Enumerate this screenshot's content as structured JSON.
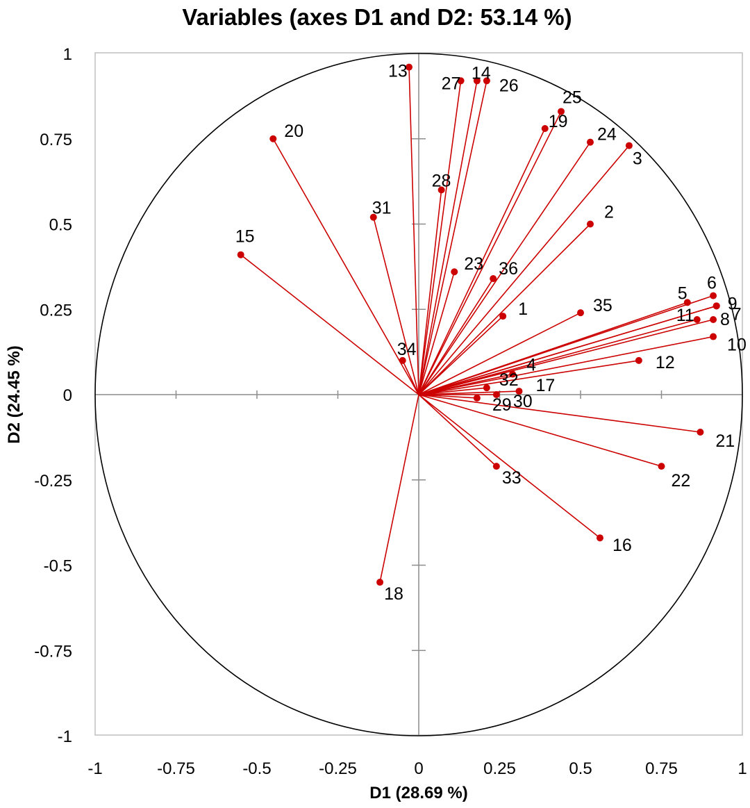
{
  "chart_data": {
    "type": "scatter",
    "subtype": "correlation-circle",
    "title": "Variables (axes D1 and D2: 53.14 %)",
    "xlabel": "D1 (28.69 %)",
    "ylabel": "D2 (24.45 %)",
    "xlim": [
      -1,
      1
    ],
    "ylim": [
      -1,
      1
    ],
    "x_ticks": [
      "-1",
      "-0.75",
      "-0.5",
      "-0.25",
      "0",
      "0.25",
      "0.5",
      "0.75",
      "1"
    ],
    "y_ticks": [
      "1",
      "0.75",
      "0.5",
      "0.25",
      "0",
      "-0.25",
      "-0.5",
      "-0.75",
      "-1"
    ],
    "vector_color": "#cc0000",
    "circle_color": "#000000",
    "points": [
      {
        "label": "1",
        "x": 0.26,
        "y": 0.23
      },
      {
        "label": "2",
        "x": 0.53,
        "y": 0.5
      },
      {
        "label": "3",
        "x": 0.65,
        "y": 0.73
      },
      {
        "label": "4",
        "x": 0.29,
        "y": 0.06
      },
      {
        "label": "5",
        "x": 0.83,
        "y": 0.27
      },
      {
        "label": "6",
        "x": 0.91,
        "y": 0.29
      },
      {
        "label": "7",
        "x": 0.92,
        "y": 0.26
      },
      {
        "label": "8",
        "x": 0.91,
        "y": 0.22
      },
      {
        "label": "9",
        "x": 0.92,
        "y": 0.26
      },
      {
        "label": "10",
        "x": 0.91,
        "y": 0.17
      },
      {
        "label": "11",
        "x": 0.86,
        "y": 0.22
      },
      {
        "label": "12",
        "x": 0.68,
        "y": 0.1
      },
      {
        "label": "13",
        "x": -0.03,
        "y": 0.96
      },
      {
        "label": "14",
        "x": 0.18,
        "y": 0.92
      },
      {
        "label": "15",
        "x": -0.55,
        "y": 0.41
      },
      {
        "label": "16",
        "x": 0.56,
        "y": -0.42
      },
      {
        "label": "17",
        "x": 0.31,
        "y": 0.01
      },
      {
        "label": "18",
        "x": -0.12,
        "y": -0.55
      },
      {
        "label": "19",
        "x": 0.39,
        "y": 0.78
      },
      {
        "label": "20",
        "x": -0.45,
        "y": 0.75
      },
      {
        "label": "21",
        "x": 0.87,
        "y": -0.11
      },
      {
        "label": "22",
        "x": 0.75,
        "y": -0.21
      },
      {
        "label": "23",
        "x": 0.11,
        "y": 0.36
      },
      {
        "label": "24",
        "x": 0.53,
        "y": 0.74
      },
      {
        "label": "25",
        "x": 0.44,
        "y": 0.83
      },
      {
        "label": "26",
        "x": 0.21,
        "y": 0.92
      },
      {
        "label": "27",
        "x": 0.13,
        "y": 0.92
      },
      {
        "label": "28",
        "x": 0.07,
        "y": 0.6
      },
      {
        "label": "29",
        "x": 0.18,
        "y": -0.01
      },
      {
        "label": "30",
        "x": 0.24,
        "y": 0.0
      },
      {
        "label": "31",
        "x": -0.14,
        "y": 0.52
      },
      {
        "label": "32",
        "x": 0.21,
        "y": 0.02
      },
      {
        "label": "33",
        "x": 0.24,
        "y": -0.21
      },
      {
        "label": "34",
        "x": -0.05,
        "y": 0.1
      },
      {
        "label": "35",
        "x": 0.5,
        "y": 0.24
      },
      {
        "label": "36",
        "x": 0.23,
        "y": 0.34
      }
    ]
  }
}
